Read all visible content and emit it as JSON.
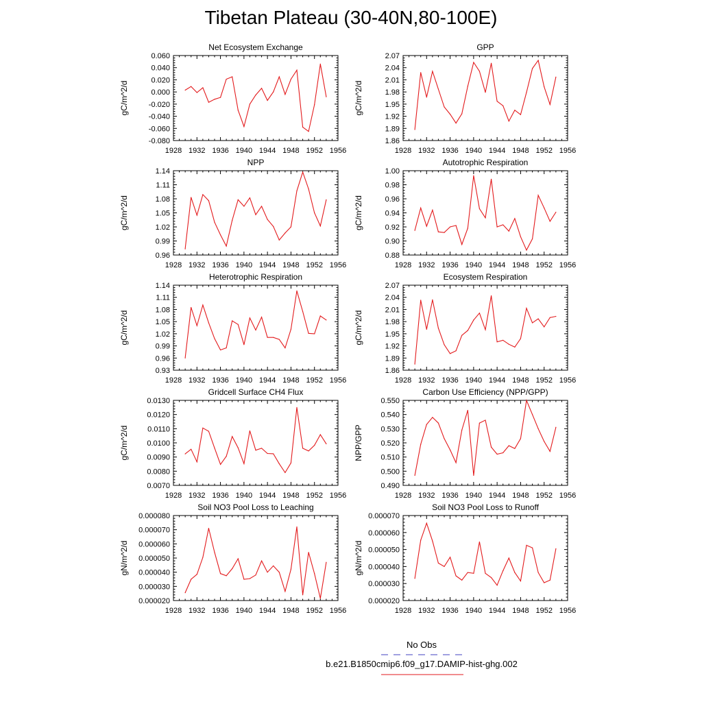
{
  "title": "Tibetan Plateau (30-40N,80-100E)",
  "colors": {
    "series": "#e31a1c",
    "obs_line": "#4040c0",
    "axis": "#000000"
  },
  "legend": {
    "obs_label": "No Obs",
    "model_label": "b.e21.B1850cmip6.f09_g17.DAMIP-hist-ghg.002"
  },
  "chart_data": [
    {
      "type": "line",
      "title": "Net Ecosystem Exchange",
      "ylabel": "gC/m^2/d",
      "xlim": [
        1928,
        1956
      ],
      "xticks": [
        "1928",
        "1932",
        "1936",
        "1940",
        "1944",
        "1948",
        "1952",
        "1956"
      ],
      "ylim": [
        -0.08,
        0.06
      ],
      "yticks": [
        "0.060",
        "0.040",
        "0.020",
        "0.000",
        "-0.020",
        "-0.040",
        "-0.060",
        "-0.080"
      ],
      "x": [
        1930,
        1931,
        1932,
        1933,
        1934,
        1935,
        1936,
        1937,
        1938,
        1939,
        1940,
        1941,
        1942,
        1943,
        1944,
        1945,
        1946,
        1947,
        1948,
        1949,
        1950,
        1951,
        1952,
        1953,
        1954
      ],
      "values": [
        0.003,
        0.009,
        -0.001,
        0.007,
        -0.017,
        -0.012,
        -0.009,
        0.021,
        0.025,
        -0.03,
        -0.057,
        -0.02,
        -0.005,
        0.006,
        -0.014,
        0.0,
        0.025,
        -0.004,
        0.021,
        0.036,
        -0.058,
        -0.065,
        -0.021,
        0.046,
        -0.008
      ]
    },
    {
      "type": "line",
      "title": "GPP",
      "ylabel": "gC/m^2/d",
      "xlim": [
        1928,
        1956
      ],
      "xticks": [
        "1928",
        "1932",
        "1936",
        "1940",
        "1944",
        "1948",
        "1952",
        "1956"
      ],
      "ylim": [
        1.86,
        2.07
      ],
      "yticks": [
        "2.07",
        "2.04",
        "2.01",
        "1.98",
        "1.95",
        "1.92",
        "1.89",
        "1.86"
      ],
      "x": [
        1930,
        1931,
        1932,
        1933,
        1934,
        1935,
        1936,
        1937,
        1938,
        1939,
        1940,
        1941,
        1942,
        1943,
        1944,
        1945,
        1946,
        1947,
        1948,
        1949,
        1950,
        1951,
        1952,
        1953,
        1954
      ],
      "values": [
        1.887,
        2.028,
        1.967,
        2.031,
        1.987,
        1.943,
        1.925,
        1.903,
        1.926,
        1.994,
        2.053,
        2.031,
        1.979,
        2.051,
        1.957,
        1.946,
        1.908,
        1.935,
        1.924,
        1.979,
        2.038,
        2.058,
        1.993,
        1.949,
        2.017
      ]
    },
    {
      "type": "line",
      "title": "NPP",
      "ylabel": "gC/m^2/d",
      "xlim": [
        1928,
        1956
      ],
      "xticks": [
        "1928",
        "1932",
        "1936",
        "1940",
        "1944",
        "1948",
        "1952",
        "1956"
      ],
      "ylim": [
        0.96,
        1.14
      ],
      "yticks": [
        "1.14",
        "1.11",
        "1.08",
        "1.05",
        "1.02",
        "0.99",
        "0.96"
      ],
      "x": [
        1930,
        1931,
        1932,
        1933,
        1934,
        1935,
        1936,
        1937,
        1938,
        1939,
        1940,
        1941,
        1942,
        1943,
        1944,
        1945,
        1946,
        1947,
        1948,
        1949,
        1950,
        1951,
        1952,
        1953,
        1954
      ],
      "values": [
        0.973,
        1.083,
        1.045,
        1.089,
        1.076,
        1.03,
        1.003,
        0.979,
        1.034,
        1.078,
        1.064,
        1.082,
        1.046,
        1.064,
        1.036,
        1.021,
        0.992,
        1.007,
        1.02,
        1.097,
        1.137,
        1.101,
        1.05,
        1.022,
        1.078
      ]
    },
    {
      "type": "line",
      "title": "Autotrophic Respiration",
      "ylabel": "gC/m^2/d",
      "xlim": [
        1928,
        1956
      ],
      "xticks": [
        "1928",
        "1932",
        "1936",
        "1940",
        "1944",
        "1948",
        "1952",
        "1956"
      ],
      "ylim": [
        0.88,
        1.0
      ],
      "yticks": [
        "1.00",
        "0.98",
        "0.96",
        "0.94",
        "0.92",
        "0.90",
        "0.88"
      ],
      "x": [
        1930,
        1931,
        1932,
        1933,
        1934,
        1935,
        1936,
        1937,
        1938,
        1939,
        1940,
        1941,
        1942,
        1943,
        1944,
        1945,
        1946,
        1947,
        1948,
        1949,
        1950,
        1951,
        1952,
        1953,
        1954
      ],
      "values": [
        0.915,
        0.947,
        0.921,
        0.944,
        0.913,
        0.912,
        0.92,
        0.922,
        0.895,
        0.918,
        0.993,
        0.946,
        0.933,
        0.988,
        0.92,
        0.923,
        0.914,
        0.932,
        0.906,
        0.887,
        0.903,
        0.965,
        0.947,
        0.928,
        0.941
      ]
    },
    {
      "type": "line",
      "title": "Heterotrophic Respiration",
      "ylabel": "gC/m^2/d",
      "xlim": [
        1928,
        1956
      ],
      "xticks": [
        "1928",
        "1932",
        "1936",
        "1940",
        "1944",
        "1948",
        "1952",
        "1956"
      ],
      "ylim": [
        0.93,
        1.14
      ],
      "yticks": [
        "1.14",
        "1.11",
        "1.08",
        "1.05",
        "1.02",
        "0.99",
        "0.96",
        "0.93"
      ],
      "x": [
        1930,
        1931,
        1932,
        1933,
        1934,
        1935,
        1936,
        1937,
        1938,
        1939,
        1940,
        1941,
        1942,
        1943,
        1944,
        1945,
        1946,
        1947,
        1948,
        1949,
        1950,
        1951,
        1952,
        1953,
        1954
      ],
      "values": [
        0.96,
        1.085,
        1.04,
        1.091,
        1.047,
        1.008,
        0.98,
        0.985,
        1.052,
        1.043,
        0.993,
        1.059,
        1.029,
        1.061,
        1.011,
        1.011,
        1.006,
        0.985,
        1.031,
        1.126,
        1.075,
        1.021,
        1.02,
        1.064,
        1.054
      ]
    },
    {
      "type": "line",
      "title": "Ecosystem Respiration",
      "ylabel": "gC/m^2/d",
      "xlim": [
        1928,
        1956
      ],
      "xticks": [
        "1928",
        "1932",
        "1936",
        "1940",
        "1944",
        "1948",
        "1952",
        "1956"
      ],
      "ylim": [
        1.86,
        2.07
      ],
      "yticks": [
        "2.07",
        "2.04",
        "2.01",
        "1.98",
        "1.95",
        "1.92",
        "1.89",
        "1.86"
      ],
      "x": [
        1930,
        1931,
        1932,
        1933,
        1934,
        1935,
        1936,
        1937,
        1938,
        1939,
        1940,
        1941,
        1942,
        1943,
        1944,
        1945,
        1946,
        1947,
        1948,
        1949,
        1950,
        1951,
        1952,
        1953,
        1954
      ],
      "values": [
        1.875,
        2.033,
        1.961,
        2.034,
        1.964,
        1.923,
        1.901,
        1.908,
        1.946,
        1.958,
        1.984,
        2.001,
        1.96,
        2.044,
        1.93,
        1.934,
        1.924,
        1.917,
        1.938,
        2.013,
        1.977,
        1.987,
        1.967,
        1.99,
        1.993
      ]
    },
    {
      "type": "line",
      "title": "Gridcell Surface CH4 Flux",
      "ylabel": "gC/m^2/d",
      "xlim": [
        1928,
        1956
      ],
      "xticks": [
        "1928",
        "1932",
        "1936",
        "1940",
        "1944",
        "1948",
        "1952",
        "1956"
      ],
      "ylim": [
        0.007,
        0.013
      ],
      "yticks": [
        "0.0130",
        "0.0120",
        "0.0110",
        "0.0100",
        "0.0090",
        "0.0080",
        "0.0070"
      ],
      "x": [
        1930,
        1931,
        1932,
        1933,
        1934,
        1935,
        1936,
        1937,
        1938,
        1939,
        1940,
        1941,
        1942,
        1943,
        1944,
        1945,
        1946,
        1947,
        1948,
        1949,
        1950,
        1951,
        1952,
        1953,
        1954
      ],
      "values": [
        0.00922,
        0.00955,
        0.00866,
        0.01105,
        0.01082,
        0.00963,
        0.00848,
        0.00905,
        0.01045,
        0.00965,
        0.00853,
        0.01085,
        0.00948,
        0.00962,
        0.00925,
        0.00923,
        0.00853,
        0.0079,
        0.00858,
        0.0125,
        0.00962,
        0.00943,
        0.00983,
        0.01058,
        0.00993
      ]
    },
    {
      "type": "line",
      "title": "Carbon Use Efficiency (NPP/GPP)",
      "ylabel": "NPP/GPP",
      "xlim": [
        1928,
        1956
      ],
      "xticks": [
        "1928",
        "1932",
        "1936",
        "1940",
        "1944",
        "1948",
        "1952",
        "1956"
      ],
      "ylim": [
        0.49,
        0.55
      ],
      "yticks": [
        "0.550",
        "0.540",
        "0.530",
        "0.520",
        "0.510",
        "0.500",
        "0.490"
      ],
      "x": [
        1930,
        1931,
        1932,
        1933,
        1934,
        1935,
        1936,
        1937,
        1938,
        1939,
        1940,
        1941,
        1942,
        1943,
        1944,
        1945,
        1946,
        1947,
        1948,
        1949,
        1950,
        1951,
        1952,
        1953,
        1954
      ],
      "values": [
        0.497,
        0.519,
        0.533,
        0.538,
        0.534,
        0.523,
        0.515,
        0.506,
        0.529,
        0.543,
        0.497,
        0.534,
        0.536,
        0.517,
        0.512,
        0.513,
        0.518,
        0.516,
        0.523,
        0.55,
        0.54,
        0.53,
        0.521,
        0.514,
        0.531
      ]
    },
    {
      "type": "line",
      "title": "Soil NO3 Pool Loss to Leaching",
      "ylabel": "gN/m^2/d",
      "xlim": [
        1928,
        1956
      ],
      "xticks": [
        "1928",
        "1932",
        "1936",
        "1940",
        "1944",
        "1948",
        "1952",
        "1956"
      ],
      "ylim": [
        2e-05,
        8e-05
      ],
      "yticks": [
        "0.000080",
        "0.000070",
        "0.000060",
        "0.000050",
        "0.000040",
        "0.000030",
        "0.000020"
      ],
      "x": [
        1930,
        1931,
        1932,
        1933,
        1934,
        1935,
        1936,
        1937,
        1938,
        1939,
        1940,
        1941,
        1942,
        1943,
        1944,
        1945,
        1946,
        1947,
        1948,
        1949,
        1950,
        1951,
        1952,
        1953,
        1954
      ],
      "values": [
        2.55e-05,
        3.5e-05,
        3.85e-05,
        5.05e-05,
        7.1e-05,
        5.4e-05,
        3.9e-05,
        3.75e-05,
        4.25e-05,
        4.95e-05,
        3.5e-05,
        3.55e-05,
        3.8e-05,
        4.8e-05,
        4e-05,
        4.45e-05,
        4e-05,
        2.65e-05,
        4.2e-05,
        7.2e-05,
        2.4e-05,
        5.4e-05,
        3.9e-05,
        2.15e-05,
        4.7e-05
      ]
    },
    {
      "type": "line",
      "title": "Soil NO3 Pool Loss to Runoff",
      "ylabel": "gN/m^2/d",
      "xlim": [
        1928,
        1956
      ],
      "xticks": [
        "1928",
        "1932",
        "1936",
        "1940",
        "1944",
        "1948",
        "1952",
        "1956"
      ],
      "ylim": [
        2e-05,
        7e-05
      ],
      "yticks": [
        "0.000070",
        "0.000060",
        "0.000050",
        "0.000040",
        "0.000030",
        "0.000020"
      ],
      "x": [
        1930,
        1931,
        1932,
        1933,
        1934,
        1935,
        1936,
        1937,
        1938,
        1939,
        1940,
        1941,
        1942,
        1943,
        1944,
        1945,
        1946,
        1947,
        1948,
        1949,
        1950,
        1951,
        1952,
        1953,
        1954
      ],
      "values": [
        3.3e-05,
        5.55e-05,
        6.55e-05,
        5.5e-05,
        4.2e-05,
        4e-05,
        4.55e-05,
        3.45e-05,
        3.2e-05,
        3.65e-05,
        3.6e-05,
        5.45e-05,
        3.6e-05,
        3.35e-05,
        2.9e-05,
        3.75e-05,
        4.5e-05,
        3.65e-05,
        3.15e-05,
        5.25e-05,
        5.1e-05,
        3.65e-05,
        3.05e-05,
        3.2e-05,
        5.05e-05
      ]
    }
  ]
}
